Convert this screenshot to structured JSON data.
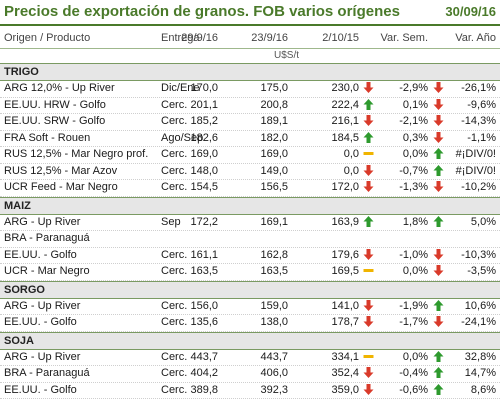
{
  "header": {
    "title": "Precios de exportación de granos. FOB varios orígenes",
    "date": "30/09/16"
  },
  "columns": {
    "origin": "Origen / Producto",
    "delivery": "Entrega",
    "d1": "29/9/16",
    "d2": "23/9/16",
    "d3": "2/10/15",
    "var_sem": "Var. Sem.",
    "var_ano": "Var. Año"
  },
  "units": "U$S/t",
  "colors": {
    "up": "#2e9a2e",
    "down": "#d93a2a",
    "flat": "#f0b400",
    "accent": "#4a7a2a"
  },
  "sections": [
    {
      "name": "TRIGO",
      "rows": [
        {
          "name": "ARG 12,0% - Up River",
          "delivery": "Dic/Ene",
          "d1": "170,0",
          "d2": "175,0",
          "d3": "230,0",
          "trend_sem": "down",
          "var_sem": "-2,9%",
          "trend_ano": "down",
          "var_ano": "-26,1%"
        },
        {
          "name": "EE.UU. HRW - Golfo",
          "delivery": "Cerc.",
          "d1": "201,1",
          "d2": "200,8",
          "d3": "222,4",
          "trend_sem": "up",
          "var_sem": "0,1%",
          "trend_ano": "down",
          "var_ano": "-9,6%"
        },
        {
          "name": "EE.UU. SRW - Golfo",
          "delivery": "Cerc.",
          "d1": "185,2",
          "d2": "189,1",
          "d3": "216,1",
          "trend_sem": "down",
          "var_sem": "-2,1%",
          "trend_ano": "down",
          "var_ano": "-14,3%"
        },
        {
          "name": "FRA Soft - Rouen",
          "delivery": "Ago/Sep",
          "d1": "182,6",
          "d2": "182,0",
          "d3": "184,5",
          "trend_sem": "up",
          "var_sem": "0,3%",
          "trend_ano": "down",
          "var_ano": "-1,1%"
        },
        {
          "name": "RUS 12,5% - Mar Negro prof.",
          "delivery": "Cerc.",
          "d1": "169,0",
          "d2": "169,0",
          "d3": "0,0",
          "trend_sem": "flat",
          "var_sem": "0,0%",
          "trend_ano": "up",
          "var_ano": "#¡DIV/0!"
        },
        {
          "name": "RUS 12,5% - Mar Azov",
          "delivery": "Cerc.",
          "d1": "148,0",
          "d2": "149,0",
          "d3": "0,0",
          "trend_sem": "down",
          "var_sem": "-0,7%",
          "trend_ano": "up",
          "var_ano": "#¡DIV/0!"
        },
        {
          "name": "UCR Feed - Mar Negro",
          "delivery": "Cerc.",
          "d1": "154,5",
          "d2": "156,5",
          "d3": "172,0",
          "trend_sem": "down",
          "var_sem": "-1,3%",
          "trend_ano": "down",
          "var_ano": "-10,2%"
        }
      ]
    },
    {
      "name": "MAIZ",
      "rows": [
        {
          "name": "ARG - Up River",
          "delivery": "Sep",
          "d1": "172,2",
          "d2": "169,1",
          "d3": "163,9",
          "trend_sem": "up",
          "var_sem": "1,8%",
          "trend_ano": "up",
          "var_ano": "5,0%"
        },
        {
          "name": "BRA - Paranaguá",
          "delivery": "",
          "d1": "",
          "d2": "",
          "d3": "",
          "trend_sem": "",
          "var_sem": "",
          "trend_ano": "",
          "var_ano": ""
        },
        {
          "name": "EE.UU. - Golfo",
          "delivery": "Cerc.",
          "d1": "161,1",
          "d2": "162,8",
          "d3": "179,6",
          "trend_sem": "down",
          "var_sem": "-1,0%",
          "trend_ano": "down",
          "var_ano": "-10,3%"
        },
        {
          "name": "UCR - Mar Negro",
          "delivery": "Cerc.",
          "d1": "163,5",
          "d2": "163,5",
          "d3": "169,5",
          "trend_sem": "flat",
          "var_sem": "0,0%",
          "trend_ano": "down",
          "var_ano": "-3,5%"
        }
      ]
    },
    {
      "name": "SORGO",
      "rows": [
        {
          "name": "ARG - Up River",
          "delivery": "Cerc.",
          "d1": "156,0",
          "d2": "159,0",
          "d3": "141,0",
          "trend_sem": "down",
          "var_sem": "-1,9%",
          "trend_ano": "up",
          "var_ano": "10,6%"
        },
        {
          "name": "EE.UU. - Golfo",
          "delivery": "Cerc.",
          "d1": "135,6",
          "d2": "138,0",
          "d3": "178,7",
          "trend_sem": "down",
          "var_sem": "-1,7%",
          "trend_ano": "down",
          "var_ano": "-24,1%"
        }
      ]
    },
    {
      "name": "SOJA",
      "rows": [
        {
          "name": "ARG - Up River",
          "delivery": "Cerc.",
          "d1": "443,7",
          "d2": "443,7",
          "d3": "334,1",
          "trend_sem": "flat",
          "var_sem": "0,0%",
          "trend_ano": "up",
          "var_ano": "32,8%"
        },
        {
          "name": "BRA - Paranaguá",
          "delivery": "Cerc.",
          "d1": "404,2",
          "d2": "406,0",
          "d3": "352,4",
          "trend_sem": "down",
          "var_sem": "-0,4%",
          "trend_ano": "up",
          "var_ano": "14,7%"
        },
        {
          "name": "EE.UU. - Golfo",
          "delivery": "Cerc.",
          "d1": "389,8",
          "d2": "392,3",
          "d3": "359,0",
          "trend_sem": "down",
          "var_sem": "-0,6%",
          "trend_ano": "up",
          "var_ano": "8,6%"
        }
      ]
    }
  ]
}
